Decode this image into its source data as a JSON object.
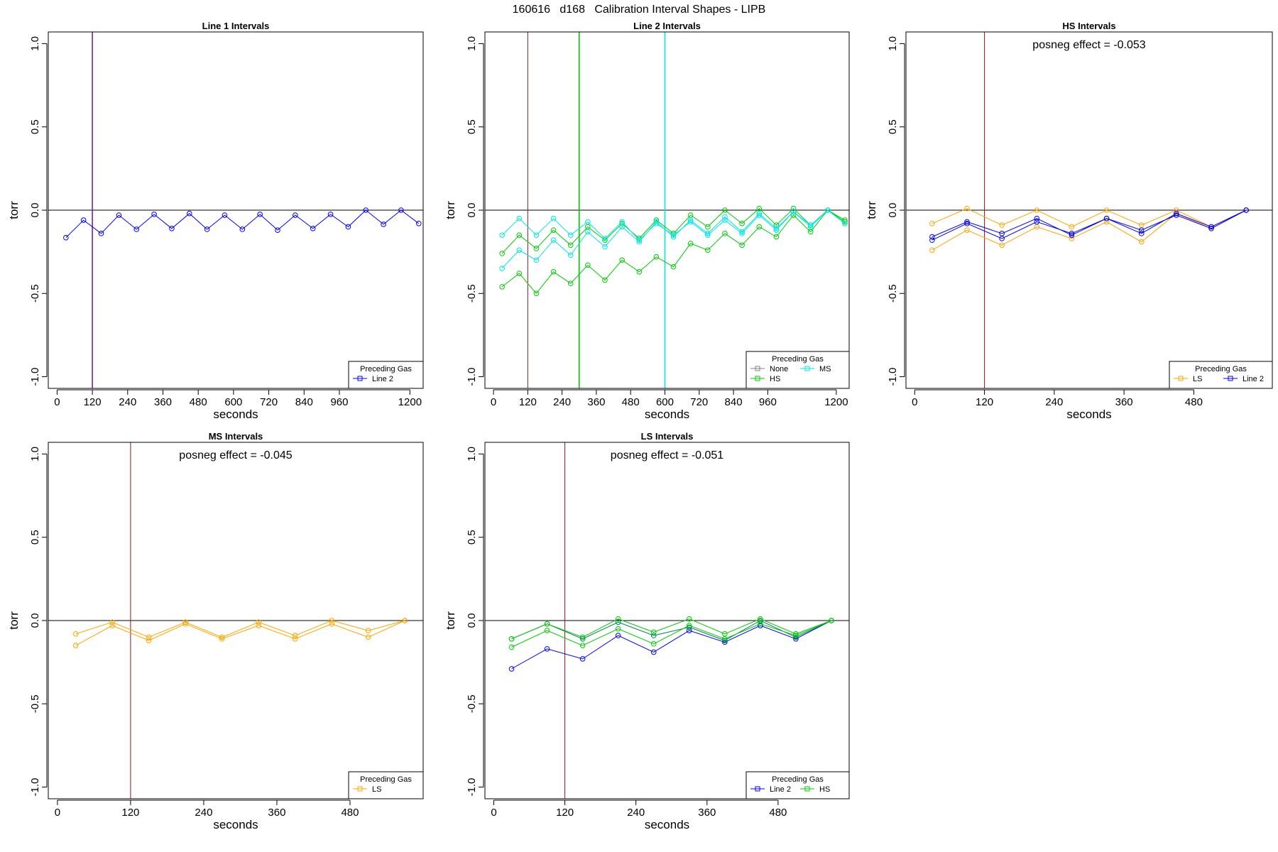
{
  "page_title": "160616   d168   Calibration Interval Shapes - LIPB",
  "colors": {
    "line2": "#0000ff",
    "hs": "#00cc00",
    "ms": "#00e5e5",
    "ls": "#ffa500",
    "none": "#808080",
    "dark_teal": "#007f5f",
    "purple": "#7f1f9f",
    "marker_red": "#8b1a1a"
  },
  "chart_data": [
    {
      "id": "line1",
      "type": "line",
      "title": "Line 1 Intervals",
      "xlabel": "seconds",
      "ylabel": "torr",
      "xlim": [
        -30,
        1245
      ],
      "ylim": [
        -1.07,
        1.07
      ],
      "xticks": [
        0,
        120,
        240,
        360,
        480,
        600,
        720,
        840,
        960,
        1200
      ],
      "yticks": [
        1.0,
        0.5,
        0.0,
        -0.5,
        -1.0
      ],
      "ytick_labels": [
        "1.0",
        "0.5",
        "0.0",
        "-0.5",
        "-1.0"
      ],
      "annotation": "",
      "vlines": [
        {
          "x": 120,
          "color": "purple"
        }
      ],
      "legend": {
        "title": "Preceding Gas",
        "entries": [
          {
            "label": "Line 2",
            "color": "line2"
          }
        ]
      },
      "series": [
        {
          "name": "Line 2",
          "color": "line2",
          "x": [
            30,
            90,
            150,
            210,
            270,
            330,
            390,
            450,
            510,
            570,
            630,
            690,
            750,
            810,
            870,
            930,
            990,
            1050,
            1110,
            1170,
            1230
          ],
          "y": [
            -0.165,
            -0.06,
            -0.14,
            -0.03,
            -0.115,
            -0.025,
            -0.11,
            -0.02,
            -0.115,
            -0.03,
            -0.115,
            -0.025,
            -0.12,
            -0.03,
            -0.11,
            -0.025,
            -0.1,
            0.0,
            -0.085,
            0.0,
            -0.08
          ]
        }
      ]
    },
    {
      "id": "line2",
      "type": "line",
      "title": "Line 2 Intervals",
      "xlabel": "seconds",
      "ylabel": "torr",
      "xlim": [
        -30,
        1245
      ],
      "ylim": [
        -1.07,
        1.07
      ],
      "xticks": [
        0,
        120,
        240,
        360,
        480,
        600,
        720,
        840,
        960,
        1200
      ],
      "yticks": [
        1.0,
        0.5,
        0.0,
        -0.5,
        -1.0
      ],
      "ytick_labels": [
        "1.0",
        "0.5",
        "0.0",
        "-0.5",
        "-1.0"
      ],
      "annotation": "",
      "vlines": [
        {
          "x": 120,
          "color": "marker_red"
        },
        {
          "x": 300,
          "color": "hs"
        },
        {
          "x": 600,
          "color": "ms"
        }
      ],
      "legend": {
        "title": "Preceding Gas",
        "entries": [
          {
            "label": "None",
            "color": "none"
          },
          {
            "label": "MS",
            "color": "ms"
          },
          {
            "label": "HS",
            "color": "hs"
          }
        ]
      },
      "series": [
        {
          "name": "HS",
          "color": "hs",
          "x": [
            30,
            90,
            150,
            210,
            270,
            330,
            390,
            450,
            510,
            570,
            630,
            690,
            750,
            810,
            870,
            930,
            990,
            1050,
            1110,
            1170,
            1230
          ],
          "y": [
            -0.46,
            -0.38,
            -0.5,
            -0.37,
            -0.44,
            -0.33,
            -0.42,
            -0.3,
            -0.37,
            -0.28,
            -0.34,
            -0.2,
            -0.24,
            -0.14,
            -0.21,
            -0.1,
            -0.16,
            -0.03,
            -0.13,
            0.0,
            -0.07
          ]
        },
        {
          "name": "HS",
          "color": "hs",
          "x": [
            30,
            90,
            150,
            210,
            270,
            330,
            390,
            450,
            510,
            570,
            630,
            690,
            750,
            810,
            870,
            930,
            990,
            1050,
            1110,
            1170,
            1230
          ],
          "y": [
            -0.26,
            -0.15,
            -0.23,
            -0.12,
            -0.21,
            -0.1,
            -0.18,
            -0.08,
            -0.17,
            -0.06,
            -0.14,
            -0.03,
            -0.1,
            0.0,
            -0.08,
            0.01,
            -0.09,
            0.01,
            -0.09,
            0.0,
            -0.06
          ]
        },
        {
          "name": "MS",
          "color": "ms",
          "x": [
            30,
            90,
            150,
            210,
            270,
            330,
            390,
            450,
            510,
            570,
            630,
            690,
            750,
            810,
            870,
            930,
            990,
            1050,
            1110,
            1170,
            1230
          ],
          "y": [
            -0.35,
            -0.24,
            -0.3,
            -0.18,
            -0.27,
            -0.13,
            -0.22,
            -0.1,
            -0.19,
            -0.07,
            -0.16,
            -0.06,
            -0.14,
            -0.04,
            -0.13,
            -0.02,
            -0.11,
            -0.01,
            -0.09,
            0.0,
            -0.08
          ]
        },
        {
          "name": "MS",
          "color": "ms",
          "x": [
            30,
            90,
            150,
            210,
            270,
            330,
            390,
            450,
            510,
            570,
            630,
            690,
            750,
            810,
            870,
            930,
            990,
            1050,
            1110,
            1170,
            1230
          ],
          "y": [
            -0.15,
            -0.05,
            -0.15,
            -0.05,
            -0.15,
            -0.07,
            -0.17,
            -0.07,
            -0.18,
            -0.08,
            -0.15,
            -0.07,
            -0.15,
            -0.06,
            -0.14,
            -0.03,
            -0.12,
            -0.01,
            -0.1,
            0.0,
            -0.08
          ]
        }
      ]
    },
    {
      "id": "hs",
      "type": "line",
      "title": "HS Intervals",
      "xlabel": "seconds",
      "ylabel": "torr",
      "xlim": [
        -15,
        615
      ],
      "ylim": [
        -1.07,
        1.07
      ],
      "xticks": [
        0,
        120,
        240,
        360,
        480
      ],
      "yticks": [
        1.0,
        0.5,
        0.0,
        -0.5,
        -1.0
      ],
      "ytick_labels": [
        "1.0",
        "0.5",
        "0.0",
        "-0.5",
        "-1.0"
      ],
      "annotation": "posneg effect = -0.053",
      "vlines": [
        {
          "x": 120,
          "color": "marker_red"
        }
      ],
      "legend": {
        "title": "Preceding Gas",
        "entries": [
          {
            "label": "LS",
            "color": "ls"
          },
          {
            "label": "Line 2",
            "color": "line2"
          }
        ]
      },
      "series": [
        {
          "name": "LS",
          "color": "ls",
          "x": [
            30,
            90,
            150,
            210,
            270,
            330,
            390,
            450,
            510,
            570
          ],
          "y": [
            -0.08,
            0.01,
            -0.09,
            0.0,
            -0.1,
            0.0,
            -0.09,
            0.0,
            -0.1,
            0.0
          ]
        },
        {
          "name": "LS",
          "color": "ls",
          "x": [
            30,
            90,
            150,
            210,
            270,
            330,
            390,
            450,
            510,
            570
          ],
          "y": [
            -0.24,
            -0.12,
            -0.21,
            -0.1,
            -0.17,
            -0.07,
            -0.19,
            -0.02,
            -0.11,
            0.0
          ]
        },
        {
          "name": "Line 2",
          "color": "line2",
          "x": [
            30,
            90,
            150,
            210,
            270,
            330,
            390,
            450,
            510,
            570
          ],
          "y": [
            -0.16,
            -0.07,
            -0.14,
            -0.05,
            -0.15,
            -0.05,
            -0.12,
            -0.03,
            -0.11,
            0.0
          ]
        },
        {
          "name": "Line 2",
          "color": "line2",
          "x": [
            30,
            90,
            150,
            210,
            270,
            330,
            390,
            450,
            510,
            570
          ],
          "y": [
            -0.18,
            -0.08,
            -0.17,
            -0.07,
            -0.14,
            -0.05,
            -0.14,
            -0.02,
            -0.1,
            0.0
          ]
        }
      ]
    },
    {
      "id": "ms",
      "type": "line",
      "title": "MS Intervals",
      "xlabel": "seconds",
      "ylabel": "torr",
      "xlim": [
        -15,
        600
      ],
      "ylim": [
        -1.07,
        1.07
      ],
      "xticks": [
        0,
        120,
        240,
        360,
        480
      ],
      "yticks": [
        1.0,
        0.5,
        0.0,
        -0.5,
        -1.0
      ],
      "ytick_labels": [
        "1.0",
        "0.5",
        "0.0",
        "-0.5",
        "-1.0"
      ],
      "annotation": "posneg effect = -0.045",
      "vlines": [
        {
          "x": 120,
          "color": "marker_red"
        }
      ],
      "legend": {
        "title": "Preceding Gas",
        "entries": [
          {
            "label": "LS",
            "color": "ls"
          }
        ]
      },
      "series": [
        {
          "name": "LS",
          "color": "ls",
          "x": [
            30,
            90,
            150,
            210,
            270,
            330,
            390,
            450,
            510,
            570
          ],
          "y": [
            -0.08,
            -0.01,
            -0.1,
            -0.01,
            -0.1,
            -0.01,
            -0.09,
            0.0,
            -0.06,
            0.0
          ]
        },
        {
          "name": "LS",
          "color": "ls",
          "x": [
            30,
            90,
            150,
            210,
            270,
            330,
            390,
            450,
            510,
            570
          ],
          "y": [
            -0.15,
            -0.03,
            -0.12,
            -0.02,
            -0.11,
            -0.03,
            -0.11,
            -0.02,
            -0.1,
            0.0
          ]
        }
      ]
    },
    {
      "id": "ls",
      "type": "line",
      "title": "LS Intervals",
      "xlabel": "seconds",
      "ylabel": "torr",
      "xlim": [
        -15,
        600
      ],
      "ylim": [
        -1.07,
        1.07
      ],
      "xticks": [
        0,
        120,
        240,
        360,
        480
      ],
      "yticks": [
        1.0,
        0.5,
        0.0,
        -0.5,
        -1.0
      ],
      "ytick_labels": [
        "1.0",
        "0.5",
        "0.0",
        "-0.5",
        "-1.0"
      ],
      "annotation": "posneg effect = -0.051",
      "vlines": [
        {
          "x": 120,
          "color": "marker_red"
        }
      ],
      "legend": {
        "title": "Preceding Gas",
        "entries": [
          {
            "label": "Line 2",
            "color": "line2"
          },
          {
            "label": "HS",
            "color": "hs"
          }
        ]
      },
      "series": [
        {
          "name": "Line 2",
          "color": "line2",
          "x": [
            30,
            90,
            150,
            210,
            270,
            330,
            390,
            450,
            510,
            570
          ],
          "y": [
            -0.29,
            -0.17,
            -0.23,
            -0.09,
            -0.19,
            -0.06,
            -0.13,
            -0.03,
            -0.11,
            0.0
          ]
        },
        {
          "name": "Line 2",
          "color": "dark_teal",
          "x": [
            30,
            90,
            150,
            210,
            270,
            330,
            390,
            450,
            510,
            570
          ],
          "y": [
            -0.11,
            -0.02,
            -0.11,
            -0.01,
            -0.09,
            -0.04,
            -0.12,
            0.0,
            -0.1,
            0.0
          ]
        },
        {
          "name": "HS",
          "color": "hs",
          "x": [
            30,
            90,
            150,
            210,
            270,
            330,
            390,
            450,
            510,
            570
          ],
          "y": [
            -0.16,
            -0.06,
            -0.15,
            -0.05,
            -0.14,
            -0.03,
            -0.11,
            -0.02,
            -0.09,
            0.0
          ]
        },
        {
          "name": "HS",
          "color": "hs",
          "x": [
            30,
            90,
            150,
            210,
            270,
            330,
            390,
            450,
            510,
            570
          ],
          "y": [
            -0.11,
            -0.02,
            -0.1,
            0.01,
            -0.07,
            0.01,
            -0.08,
            0.01,
            -0.08,
            0.0
          ]
        }
      ]
    }
  ]
}
